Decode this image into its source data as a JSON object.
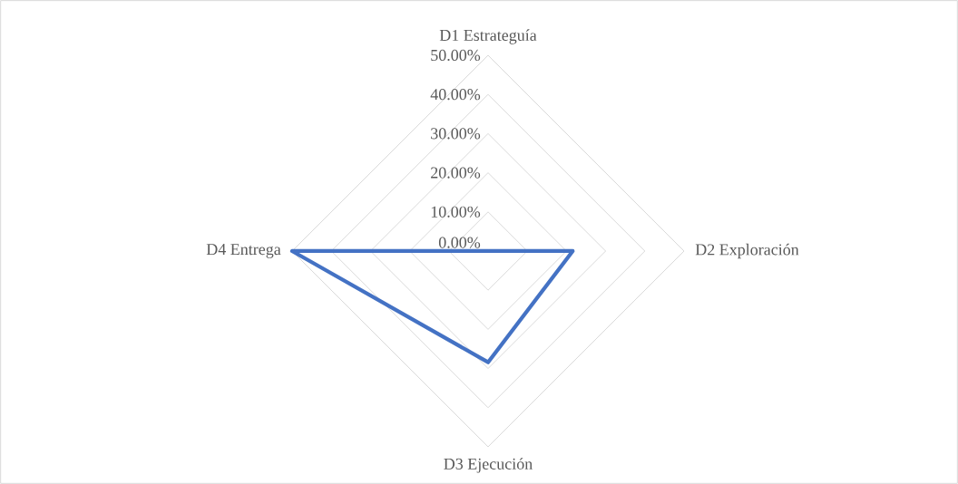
{
  "chart_data": {
    "type": "radar",
    "categories": [
      "D1 Estrateguía",
      "D2 Exploración",
      "D3 Ejecución",
      "D4 Entrega"
    ],
    "series": [
      {
        "color": "#4472c4",
        "values": [
          0,
          21.6,
          28.4,
          50
        ]
      }
    ],
    "ylim": [
      0,
      50
    ],
    "yticks": [
      {
        "value": 0,
        "label": "0.00%"
      },
      {
        "value": 10,
        "label": "10.00%"
      },
      {
        "value": 20,
        "label": "20.00%"
      },
      {
        "value": 30,
        "label": "30.00%"
      },
      {
        "value": 40,
        "label": "40.00%"
      },
      {
        "value": 50,
        "label": "50.00%"
      }
    ],
    "grid": true,
    "marker": "none",
    "line_style": "solid"
  }
}
